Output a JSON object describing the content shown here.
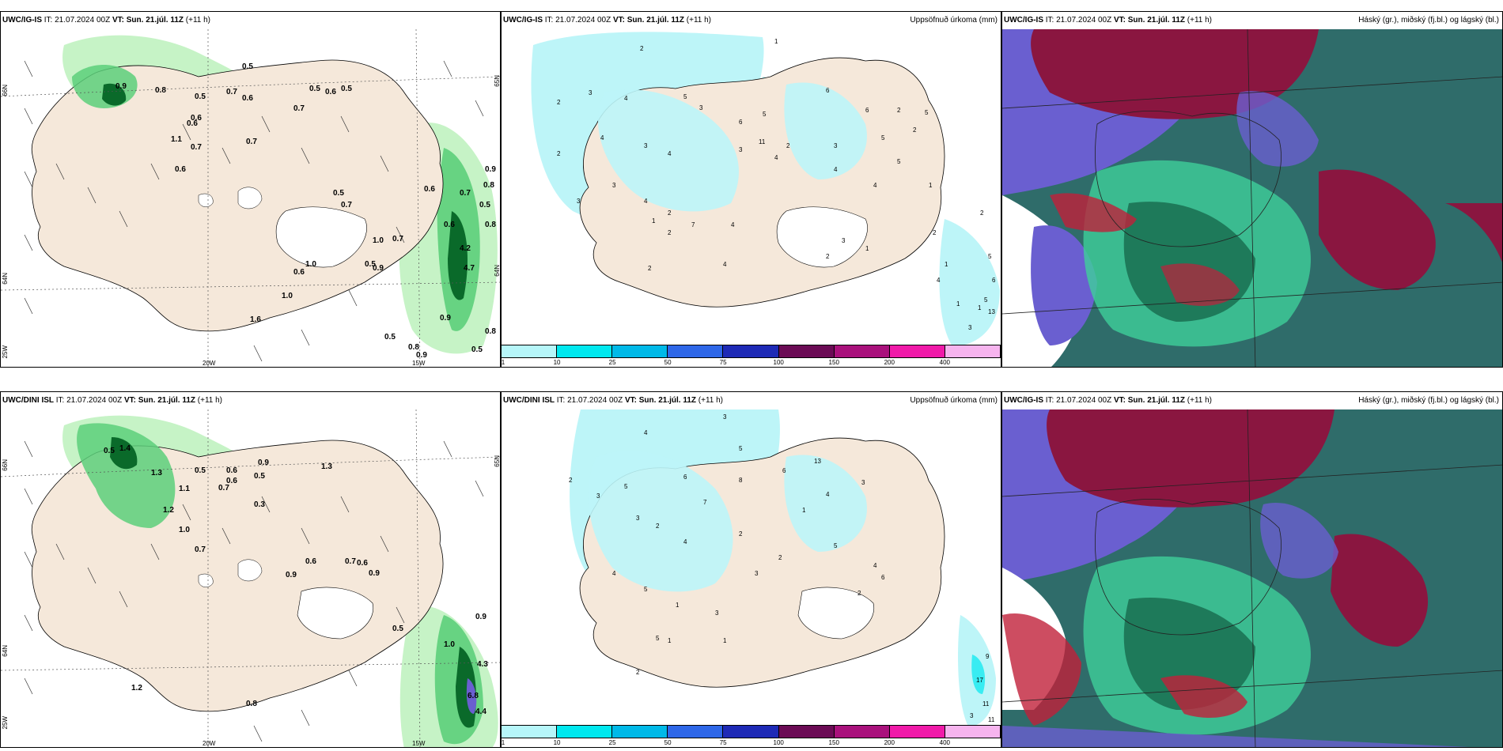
{
  "panels": {
    "top_left": {
      "model": "UWC/IG-IS",
      "it_label": "IT:",
      "it_value": "21.07.2024 00Z",
      "vt_label": "VT:",
      "vt_value": "Sun. 21.júl. 11Z",
      "lead": "(+11 h)",
      "lat_labels": [
        "66N",
        "64N",
        "25W"
      ],
      "lon_labels": [
        "20W",
        "15W"
      ],
      "right_lat_labels": [
        "65N",
        "64N"
      ],
      "values": [
        "0.9",
        "0.8",
        "0.5",
        "0.6",
        "0.5",
        "0.7",
        "0.6",
        "0.7",
        "0.5",
        "0.6",
        "0.5",
        "0.7",
        "0.6",
        "1.1",
        "0.7",
        "0.6",
        "0.5",
        "0.7",
        "0.6",
        "0.7",
        "0.9",
        "0.8",
        "0.5",
        "0.8",
        "0.6",
        "4.2",
        "4.7",
        "1.0",
        "0.5",
        "0.7",
        "0.9",
        "1.0",
        "0.6",
        "1.0",
        "0.8",
        "0.9",
        "0.5",
        "0.8",
        "0.9",
        "0.5",
        "1.6"
      ]
    },
    "top_mid": {
      "model": "UWC/IG-IS",
      "it_label": "IT:",
      "it_value": "21.07.2024 00Z",
      "vt_label": "VT:",
      "vt_value": "Sun. 21.júl. 11Z",
      "lead": "(+11 h)",
      "field_title": "Uppsöfnuð úrkoma (mm)",
      "values": [
        "2",
        "1",
        "3",
        "2",
        "4",
        "5",
        "6",
        "3",
        "2",
        "4",
        "3",
        "4",
        "5",
        "2",
        "6",
        "3",
        "11",
        "4",
        "3",
        "5",
        "2",
        "2",
        "5",
        "4",
        "1",
        "3",
        "4",
        "2",
        "7",
        "4",
        "2",
        "1",
        "6",
        "5",
        "4",
        "3",
        "2",
        "1",
        "3",
        "4",
        "2",
        "2",
        "5",
        "1",
        "6",
        "3",
        "5",
        "13",
        "1",
        "4",
        "2",
        "1"
      ]
    },
    "top_right": {
      "model": "UWC/IG-IS",
      "it_label": "IT:",
      "it_value": "21.07.2024 00Z",
      "vt_label": "VT:",
      "vt_value": "Sun. 21.júl. 11Z",
      "lead": "(+11 h)",
      "field_title": "Háský (gr.), miðský (fj.bl.) og lágský (bl.)"
    },
    "bottom_left": {
      "model": "UWC/DINI ISL",
      "it_label": "IT:",
      "it_value": "21.07.2024 00Z",
      "vt_label": "VT:",
      "vt_value": "Sun. 21.júl. 11Z",
      "lead": "(+11 h)",
      "lat_labels": [
        "66N",
        "64N",
        "25W"
      ],
      "lon_labels": [
        "20W",
        "15W"
      ],
      "right_lat_labels": [
        "65N"
      ],
      "values": [
        "0.5",
        "1.4",
        "1.3",
        "0.5",
        "0.6",
        "0.9",
        "0.7",
        "0.5",
        "1.1",
        "0.3",
        "1.2",
        "1.0",
        "0.7",
        "0.6",
        "0.7",
        "0.6",
        "0.9",
        "0.9",
        "0.5",
        "1.0",
        "4.3",
        "6.8",
        "4.4",
        "1.2",
        "0.8",
        "1.3",
        "0.9",
        "0.6"
      ]
    },
    "bottom_mid": {
      "model": "UWC/DINI ISL",
      "it_label": "IT:",
      "it_value": "21.07.2024 00Z",
      "vt_label": "VT:",
      "vt_value": "Sun. 21.júl. 11Z",
      "lead": "(+11 h)",
      "field_title": "Uppsöfnuð úrkoma (mm)",
      "values": [
        "3",
        "4",
        "5",
        "2",
        "3",
        "6",
        "8",
        "13",
        "6",
        "5",
        "3",
        "2",
        "4",
        "7",
        "2",
        "4",
        "3",
        "1",
        "5",
        "2",
        "3",
        "4",
        "6",
        "2",
        "5",
        "1",
        "4",
        "3",
        "1",
        "1",
        "5",
        "2",
        "9",
        "17",
        "11",
        "11",
        "3"
      ]
    },
    "bottom_right": {
      "model": "UWC/IG-IS",
      "it_label": "IT:",
      "it_value": "21.07.2024 00Z",
      "vt_label": "VT:",
      "vt_value": "Sun. 21.júl. 11Z",
      "lead": "(+11 h)",
      "field_title": "Háský (gr.), miðský (fj.bl.) og lágský (bl.)"
    }
  },
  "colorbar": {
    "ticks": [
      "1",
      "10",
      "25",
      "50",
      "75",
      "100",
      "150",
      "200",
      "400"
    ],
    "colors": [
      "#b6f6f9",
      "#00e8ef",
      "#00b9e8",
      "#2e67e8",
      "#1e2ab6",
      "#6b0b55",
      "#a9117c",
      "#f01aa9",
      "#f6b4ee"
    ]
  },
  "colors": {
    "land": "#f5e8da",
    "precip_light": "#b8f0b8",
    "precip_mid": "#5ccf7a",
    "precip_heavy": "#0a6a2a",
    "cyan_light": "#bdf5f8",
    "cloud_high": "#8a1640",
    "cloud_mid": "#6a5fd0",
    "cloud_low": "#2a6a5a",
    "cloud_green": "#3fcf9a"
  }
}
